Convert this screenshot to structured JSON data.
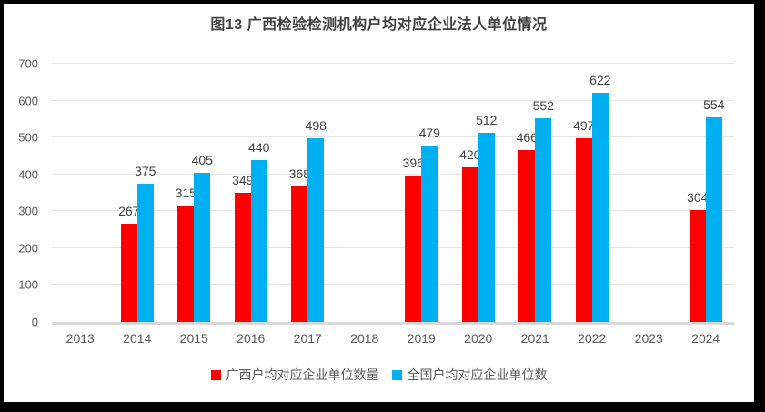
{
  "title": "图13 广西检验检测机构户均对应企业法人单位情况",
  "chart_data": {
    "type": "bar",
    "title": "图13 广西检验检测机构户均对应企业法人单位情况",
    "categories": [
      "2013",
      "2014",
      "2015",
      "2016",
      "2017",
      "2018",
      "2019",
      "2020",
      "2021",
      "2022",
      "2023",
      "2024"
    ],
    "series": [
      {
        "name": "广西户均对应企业单位数量",
        "color": "#FF0000",
        "values": [
          null,
          267,
          315,
          349,
          368,
          null,
          396,
          420,
          466,
          497,
          null,
          304
        ]
      },
      {
        "name": "全国户均对应企业单位数",
        "color": "#00B0F0",
        "values": [
          null,
          375,
          405,
          440,
          498,
          null,
          479,
          512,
          552,
          622,
          null,
          554
        ]
      }
    ],
    "xlabel": "",
    "ylabel": "",
    "ylim": [
      0,
      700
    ],
    "ytick_step": 100,
    "grid": true,
    "legend_position": "bottom",
    "data_labels": true
  },
  "colors": {
    "series_guangxi": "#FF0000",
    "series_national": "#00B0F0",
    "gridline": "#e6e6e6",
    "axis_line": "#d9d9d9",
    "tick_text": "#595959",
    "data_label_text": "#404040",
    "title_text": "#404040",
    "frame_border": "#000000",
    "background": "#ffffff"
  }
}
